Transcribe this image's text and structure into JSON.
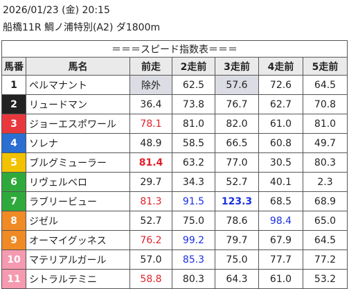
{
  "header": {
    "date": "2026/01/23 (金) 20:15",
    "race": "船橋11R 鯛ノ浦特別(A2) ダ1800m"
  },
  "table": {
    "title": "＝＝＝スピード指数表＝＝＝",
    "columns": [
      "馬番",
      "馬名",
      "前走",
      "2走前",
      "3走前",
      "4走前",
      "5走前"
    ],
    "rows": [
      [
        "1",
        "ペルマナント",
        "除外",
        "62.5",
        "57.6",
        "72.6",
        "64.5"
      ],
      [
        "2",
        "リュードマン",
        "36.4",
        "73.8",
        "76.7",
        "62.7",
        "70.8"
      ],
      [
        "3",
        "ジョーエスポワール",
        "78.1",
        "81.0",
        "82.0",
        "61.0",
        "81.0"
      ],
      [
        "4",
        "ソレナ",
        "48.9",
        "58.5",
        "66.5",
        "60.8",
        "49.7"
      ],
      [
        "5",
        "ブルグミューラー",
        "81.4",
        "63.2",
        "77.0",
        "30.5",
        "80.3"
      ],
      [
        "6",
        "リヴェルベロ",
        "29.7",
        "34.3",
        "52.7",
        "40.1",
        "2.3"
      ],
      [
        "7",
        "ラブリービュー",
        "81.3",
        "91.5",
        "123.3",
        "68.5",
        "68.9"
      ],
      [
        "8",
        "ジゼル",
        "52.7",
        "75.0",
        "78.6",
        "98.4",
        "65.0"
      ],
      [
        "9",
        "オーマイグッネス",
        "76.2",
        "99.2",
        "79.7",
        "67.9",
        "64.5"
      ],
      [
        "10",
        "マテリアルガール",
        "57.0",
        "85.3",
        "75.0",
        "77.7",
        "77.2"
      ],
      [
        "11",
        "シトラルテミニ",
        "58.8",
        "80.3",
        "64.3",
        "61.0",
        "53.2"
      ]
    ]
  }
}
